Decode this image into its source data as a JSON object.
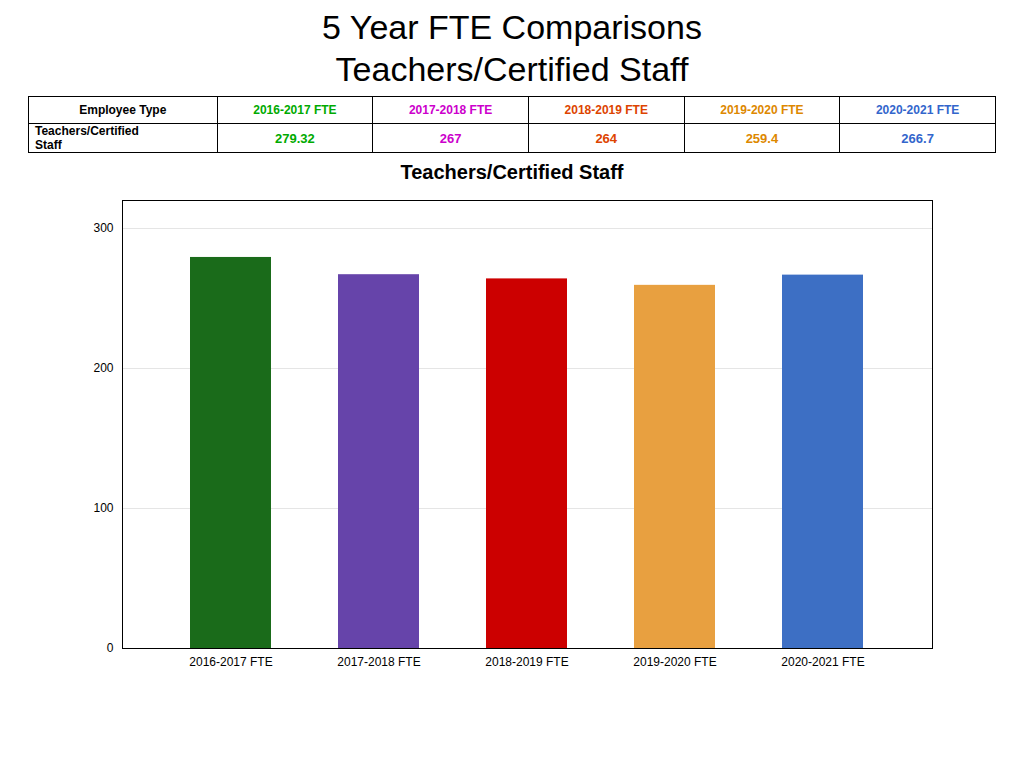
{
  "title": "5 Year FTE Comparisons",
  "subtitle": "Teachers/Certified Staff",
  "chart_data": [
    {
      "type": "table",
      "columns": [
        "Employee Type",
        "2016-2017 FTE",
        "2017-2018 FTE",
        "2018-2019 FTE",
        "2019-2020 FTE",
        "2020-2021 FTE"
      ],
      "header_colors": [
        "#000000",
        "#00aa00",
        "#cc00cc",
        "#dd4400",
        "#dd8800",
        "#3366cc"
      ],
      "rows": [
        {
          "label": [
            "Teachers/Certified",
            "Staff"
          ],
          "values": [
            279.32,
            267,
            264,
            259.4,
            266.7
          ],
          "colors": [
            "#00aa00",
            "#cc00cc",
            "#dd4400",
            "#dd8800",
            "#3366cc"
          ]
        }
      ]
    },
    {
      "type": "bar",
      "title": "Teachers/Certified Staff",
      "categories": [
        "2016-2017 FTE",
        "2017-2018 FTE",
        "2018-2019 FTE",
        "2019-2020 FTE",
        "2020-2021 FTE"
      ],
      "values": [
        279.32,
        267,
        264,
        259.4,
        266.7
      ],
      "colors": [
        "#1a6b1a",
        "#6644aa",
        "#cc0000",
        "#e8a040",
        "#3d6fc4"
      ],
      "ylim": [
        0,
        320
      ],
      "yticks": [
        0,
        100,
        200,
        300
      ],
      "grid": true
    }
  ]
}
